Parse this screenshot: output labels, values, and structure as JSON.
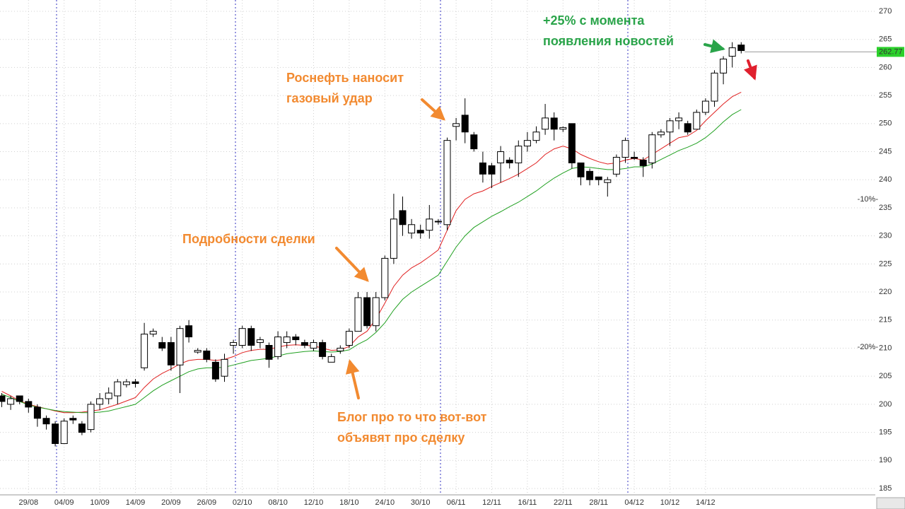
{
  "chart_data": {
    "type": "candlestick",
    "categories": [
      null,
      null,
      null,
      "29/08",
      null,
      null,
      null,
      "04/09",
      null,
      null,
      null,
      "10/09",
      null,
      null,
      null,
      "14/09",
      null,
      null,
      null,
      "20/09",
      null,
      null,
      null,
      "26/09",
      null,
      null,
      null,
      "02/10",
      null,
      null,
      null,
      "08/10",
      null,
      null,
      null,
      "12/10",
      null,
      null,
      null,
      "18/10",
      null,
      null,
      null,
      "24/10",
      null,
      null,
      null,
      "30/10",
      null,
      null,
      null,
      "06/11",
      null,
      null,
      null,
      "12/11",
      null,
      null,
      null,
      "16/11",
      null,
      null,
      null,
      "22/11",
      null,
      null,
      null,
      "28/11",
      null,
      null,
      null,
      "04/12",
      null,
      null,
      null,
      "10/12",
      null,
      null,
      null,
      "14/12",
      null,
      null,
      null,
      null
    ],
    "ohlc": {
      "open": [
        201.5,
        200,
        201.5,
        200.5,
        199.5,
        197.5,
        196.5,
        193,
        197.5,
        196.5,
        195.5,
        200,
        201,
        201.5,
        203.5,
        204,
        206.5,
        212.5,
        211,
        211,
        207,
        214,
        209.3,
        209.5,
        207.5,
        205,
        210.5,
        210.5,
        213.5,
        211,
        210.5,
        208.5,
        211,
        212,
        211,
        210,
        211,
        207.5,
        209.5,
        210.5,
        213,
        219,
        214,
        219,
        226,
        234.5,
        230.5,
        231,
        231,
        232.5,
        232,
        249.5,
        251.5,
        248,
        243,
        242.5,
        243,
        243.5,
        243,
        246,
        247,
        249,
        251,
        249,
        250,
        243,
        241.5,
        240.5,
        239.5,
        241,
        244,
        244,
        243.5,
        243,
        248,
        248.5,
        250.5,
        250,
        249,
        252,
        254,
        259,
        262,
        264
      ],
      "high": [
        202,
        201.5,
        201.5,
        201,
        200,
        198,
        197,
        197.5,
        198,
        197,
        200.5,
        202,
        203,
        204.5,
        204.5,
        204.5,
        214.5,
        213.5,
        212,
        212,
        214,
        215,
        210,
        210,
        208,
        209,
        211.5,
        214,
        214,
        212,
        211,
        213,
        213,
        212.5,
        211.5,
        211.5,
        211.5,
        209,
        210.5,
        213.5,
        220,
        220,
        220,
        226.5,
        237.5,
        237,
        233,
        232,
        235.5,
        233,
        247.5,
        251,
        254.5,
        248.5,
        245,
        243,
        246,
        244,
        247,
        248.5,
        249.5,
        253.5,
        252,
        249.5,
        250,
        243,
        242,
        240.5,
        240.5,
        244.5,
        247.5,
        245,
        244,
        248.5,
        249,
        251,
        252,
        250.5,
        252.5,
        254.5,
        259.5,
        262,
        264.5,
        264.5
      ],
      "low": [
        199.5,
        199,
        200,
        198.5,
        196,
        195.5,
        192.5,
        193,
        196.5,
        194.5,
        195,
        199,
        200,
        200,
        203,
        203,
        206,
        212,
        209.5,
        206,
        202,
        211,
        209,
        207.5,
        204,
        204,
        209,
        210,
        209.5,
        210,
        206.5,
        208,
        210,
        210.5,
        210,
        209.5,
        208,
        207.5,
        209,
        210,
        213,
        213.5,
        213,
        218.5,
        225,
        230,
        229.5,
        229.5,
        229.5,
        232,
        231,
        247,
        246.5,
        245,
        239.5,
        238.5,
        239.5,
        242,
        240.5,
        245,
        246.5,
        248,
        247,
        248.5,
        242,
        239,
        239,
        239,
        237,
        240.5,
        243,
        243.5,
        240.5,
        242,
        247.5,
        246,
        249,
        248,
        249,
        251.5,
        253,
        257,
        260,
        262.5
      ],
      "close": [
        200.5,
        201,
        200.5,
        199.5,
        197.5,
        196.5,
        193,
        197,
        197.2,
        195,
        200,
        201,
        202,
        204,
        204,
        203.7,
        212.5,
        213,
        210,
        207,
        213.5,
        212,
        209.6,
        208,
        204.5,
        208,
        211,
        213.5,
        210.5,
        211.5,
        208,
        212,
        212,
        211.5,
        210.5,
        211,
        208.5,
        208.5,
        210,
        213,
        219,
        214,
        219,
        226,
        233,
        232,
        232,
        230.5,
        233,
        232.6,
        247,
        250,
        248.5,
        245.5,
        241,
        241,
        245,
        243,
        246,
        247,
        248.5,
        251,
        249,
        249.3,
        243,
        240.5,
        240,
        240,
        240,
        244,
        247,
        243.8,
        242.5,
        248,
        248.5,
        250.5,
        251,
        248.5,
        252,
        254,
        259,
        261.5,
        263.5,
        263
      ]
    },
    "moving_averages": [
      {
        "color": "#e02020",
        "values": [
          202.3,
          201.5,
          200.6,
          200.0,
          199.6,
          199.2,
          198.8,
          198.5,
          198.5,
          198.6,
          198.8,
          199.0,
          199.5,
          200.0,
          200.6,
          201.2,
          203.0,
          204.5,
          205.5,
          206.3,
          207.2,
          207.8,
          208.0,
          208.0,
          207.8,
          208.0,
          208.5,
          209.2,
          209.6,
          209.8,
          209.8,
          210.2,
          210.5,
          210.6,
          210.5,
          210.4,
          210.0,
          209.6,
          209.7,
          210.3,
          212.0,
          213.0,
          215.2,
          218.0,
          221.0,
          223.0,
          224.3,
          225.2,
          226.3,
          227.5,
          231.0,
          234.5,
          236.5,
          237.5,
          238.0,
          238.8,
          239.5,
          240.2,
          241.0,
          242.0,
          243.0,
          244.5,
          245.5,
          246.0,
          245.5,
          244.5,
          243.8,
          243.2,
          242.8,
          243.0,
          243.5,
          243.8,
          243.5,
          244.5,
          245.5,
          246.5,
          247.5,
          247.8,
          248.8,
          250.5,
          252.0,
          253.5,
          254.8,
          255.6
        ]
      },
      {
        "color": "#20a020",
        "values": [
          201.8,
          201.2,
          200.5,
          199.9,
          199.5,
          199.2,
          198.9,
          198.7,
          198.6,
          198.5,
          198.5,
          198.6,
          198.8,
          199.2,
          199.6,
          200.0,
          201.2,
          202.4,
          203.4,
          204.2,
          205.0,
          205.8,
          206.3,
          206.5,
          206.5,
          206.6,
          207.0,
          207.4,
          207.8,
          208.0,
          208.2,
          208.6,
          209.0,
          209.2,
          209.4,
          209.5,
          209.4,
          209.3,
          209.4,
          209.7,
          210.7,
          211.5,
          212.8,
          214.5,
          216.8,
          218.7,
          220.0,
          221.0,
          222.0,
          223.0,
          225.5,
          228.0,
          230.0,
          231.5,
          232.5,
          233.5,
          234.3,
          235.2,
          236.0,
          237.0,
          238.0,
          239.2,
          240.3,
          241.2,
          242.0,
          242.3,
          242.2,
          242.0,
          241.8,
          241.8,
          242.0,
          242.3,
          242.3,
          242.8,
          243.6,
          244.4,
          245.2,
          245.8,
          246.5,
          247.5,
          248.8,
          250.3,
          251.6,
          252.5
        ]
      }
    ],
    "ylim": [
      185,
      270
    ],
    "yticks": [
      185,
      190,
      195,
      200,
      205,
      210,
      215,
      220,
      225,
      230,
      235,
      240,
      245,
      250,
      255,
      260,
      265,
      270
    ],
    "grid": true,
    "last_price": 262.77,
    "levels": [
      {
        "label": "-10%-",
        "value": 236.5
      },
      {
        "label": "-20%-",
        "value": 210.2
      }
    ],
    "annotations": [
      {
        "lines": [
          "+25% с момента",
          "появления новостей"
        ],
        "color": "#2aa44a",
        "x": 768,
        "y": 30
      },
      {
        "lines": [
          "Роснефть наносит",
          "газовый удар"
        ],
        "color": "#f28a30",
        "x": 405,
        "y": 111
      },
      {
        "lines": [
          "Подробности сделки"
        ],
        "color": "#f28a30",
        "x": 258,
        "y": 339
      },
      {
        "lines": [
          "Блог про то что вот-вот",
          "объявят про сделку"
        ],
        "color": "#f28a30",
        "x": 477,
        "y": 591
      }
    ]
  }
}
